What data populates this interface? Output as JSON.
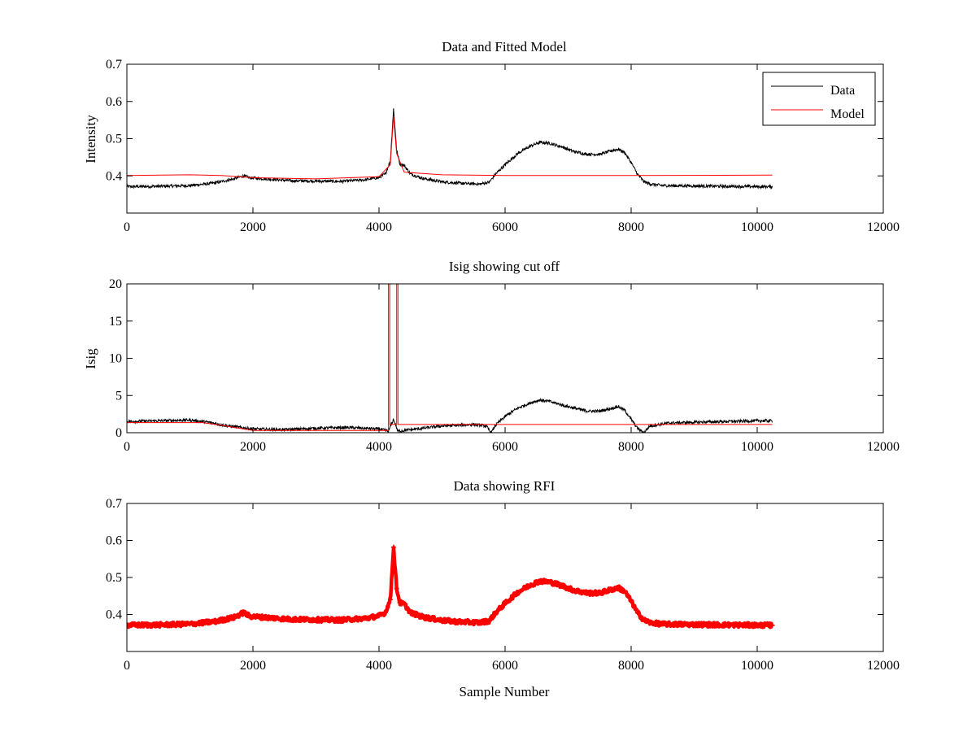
{
  "chart_data": [
    {
      "type": "line",
      "title": "Data and Fitted Model",
      "xlabel": "",
      "ylabel": "Intensity",
      "xlim": [
        0,
        12000
      ],
      "ylim": [
        0.3,
        0.7
      ],
      "xticks": [
        0,
        2000,
        4000,
        6000,
        8000,
        10000,
        12000
      ],
      "xtick_labels": [
        "0",
        "2000",
        "4000",
        "6000",
        "8000",
        "10000",
        "12000"
      ],
      "yticks": [
        0.4,
        0.5,
        0.6,
        0.7
      ],
      "ytick_labels": [
        "0.4",
        "0.5",
        "0.6",
        "0.7"
      ],
      "grid": false,
      "legend": "top-right",
      "series": [
        {
          "name": "Data",
          "color": "#000000",
          "style": "line",
          "x": [
            0,
            500,
            1000,
            1400,
            1700,
            1850,
            1950,
            2200,
            2600,
            3000,
            3400,
            3800,
            4000,
            4100,
            4180,
            4230,
            4280,
            4330,
            4400,
            4500,
            4700,
            5000,
            5300,
            5600,
            5750,
            5850,
            6000,
            6200,
            6400,
            6550,
            6700,
            6900,
            7100,
            7300,
            7500,
            7700,
            7800,
            7900,
            8000,
            8100,
            8200,
            8300,
            8500,
            9000,
            9500,
            10000,
            10240
          ],
          "y": [
            0.371,
            0.372,
            0.374,
            0.381,
            0.392,
            0.4,
            0.395,
            0.392,
            0.387,
            0.386,
            0.385,
            0.39,
            0.396,
            0.405,
            0.44,
            0.58,
            0.47,
            0.432,
            0.428,
            0.405,
            0.393,
            0.384,
            0.38,
            0.378,
            0.383,
            0.405,
            0.43,
            0.46,
            0.48,
            0.49,
            0.488,
            0.478,
            0.465,
            0.458,
            0.458,
            0.468,
            0.472,
            0.462,
            0.436,
            0.405,
            0.385,
            0.378,
            0.374,
            0.373,
            0.372,
            0.371,
            0.371
          ]
        },
        {
          "name": "Model",
          "color": "#ff0000",
          "style": "line",
          "x": [
            0,
            1000,
            1500,
            2000,
            3000,
            4000,
            4180,
            4230,
            4280,
            4400,
            5000,
            6000,
            8000,
            10240
          ],
          "y": [
            0.401,
            0.403,
            0.401,
            0.395,
            0.392,
            0.398,
            0.43,
            0.56,
            0.46,
            0.41,
            0.403,
            0.401,
            0.401,
            0.402
          ]
        }
      ]
    },
    {
      "type": "line",
      "title": "Isig showing cut off",
      "xlabel": "",
      "ylabel": "Isig",
      "xlim": [
        0,
        12000
      ],
      "ylim": [
        0,
        20
      ],
      "xticks": [
        0,
        2000,
        4000,
        6000,
        8000,
        10000,
        12000
      ],
      "xtick_labels": [
        "0",
        "2000",
        "4000",
        "6000",
        "8000",
        "10000",
        "12000"
      ],
      "yticks": [
        0,
        5,
        10,
        15,
        20
      ],
      "ytick_labels": [
        "0",
        "5",
        "10",
        "15",
        "20"
      ],
      "grid": false,
      "series": [
        {
          "color": "#000000",
          "style": "line",
          "x": [
            0,
            500,
            1000,
            1300,
            1600,
            2000,
            2500,
            3000,
            3500,
            4000,
            4150,
            4230,
            4300,
            4500,
            5000,
            5500,
            5700,
            5780,
            5850,
            6000,
            6200,
            6400,
            6550,
            6700,
            7000,
            7300,
            7500,
            7700,
            7800,
            7900,
            8000,
            8100,
            8200,
            8300,
            8600,
            9000,
            9500,
            10000,
            10240
          ],
          "y": [
            1.5,
            1.6,
            1.7,
            1.4,
            0.9,
            0.5,
            0.4,
            0.6,
            0.7,
            0.5,
            0.2,
            1.8,
            0.2,
            0.4,
            0.9,
            1.1,
            0.9,
            0.0,
            1.0,
            2.2,
            3.3,
            4.0,
            4.4,
            4.2,
            3.5,
            2.9,
            2.9,
            3.3,
            3.5,
            3.0,
            1.8,
            0.6,
            0.0,
            0.9,
            1.3,
            1.4,
            1.5,
            1.6,
            1.6
          ]
        },
        {
          "color": "#ff0000",
          "style": "line",
          "x": [
            0,
            1200,
            1500,
            2000,
            4150,
            4150,
            4170,
            4170,
            4280,
            4280,
            4300,
            4300,
            5000,
            10240
          ],
          "y": [
            1.35,
            1.35,
            1.0,
            0.3,
            0.3,
            20,
            20,
            1.1,
            1.1,
            20,
            20,
            1.1,
            1.1,
            1.1
          ]
        }
      ]
    },
    {
      "type": "scatter",
      "title": "Data showing RFI",
      "xlabel": "Sample Number",
      "ylabel": "",
      "xlim": [
        0,
        12000
      ],
      "ylim": [
        0.3,
        0.7
      ],
      "xticks": [
        0,
        2000,
        4000,
        6000,
        8000,
        10000,
        12000
      ],
      "xtick_labels": [
        "0",
        "2000",
        "4000",
        "6000",
        "8000",
        "10000",
        "12000"
      ],
      "yticks": [
        0.4,
        0.5,
        0.6,
        0.7
      ],
      "ytick_labels": [
        "0.4",
        "0.5",
        "0.6",
        "0.7"
      ],
      "grid": false,
      "series": [
        {
          "color": "#ff0000",
          "style": "markers",
          "x": [
            0,
            500,
            1000,
            1400,
            1700,
            1850,
            1950,
            2200,
            2600,
            3000,
            3400,
            3800,
            4000,
            4100,
            4180,
            4230,
            4280,
            4330,
            4400,
            4500,
            4700,
            5000,
            5300,
            5600,
            5750,
            5850,
            6000,
            6200,
            6400,
            6550,
            6700,
            6900,
            7100,
            7300,
            7500,
            7700,
            7800,
            7900,
            8000,
            8100,
            8200,
            8300,
            8500,
            9000,
            9500,
            10000,
            10240
          ],
          "y": [
            0.371,
            0.372,
            0.374,
            0.381,
            0.392,
            0.405,
            0.395,
            0.392,
            0.387,
            0.386,
            0.385,
            0.39,
            0.396,
            0.405,
            0.44,
            0.582,
            0.47,
            0.432,
            0.428,
            0.405,
            0.393,
            0.384,
            0.38,
            0.378,
            0.383,
            0.405,
            0.43,
            0.46,
            0.48,
            0.49,
            0.488,
            0.478,
            0.465,
            0.458,
            0.458,
            0.468,
            0.472,
            0.462,
            0.436,
            0.405,
            0.385,
            0.378,
            0.374,
            0.373,
            0.372,
            0.371,
            0.371
          ]
        }
      ]
    }
  ]
}
